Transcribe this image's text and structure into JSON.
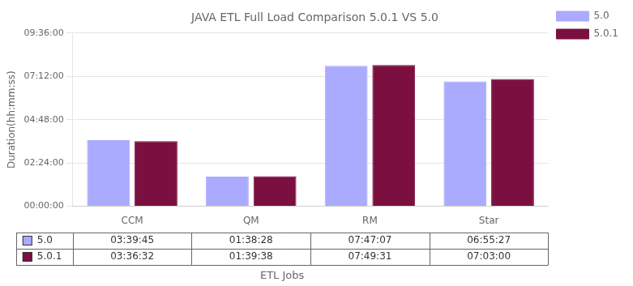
{
  "chart_data": {
    "type": "bar",
    "title": "JAVA ETL Full Load Comparison 5.0.1 VS 5.0",
    "xlabel": "ETL Jobs",
    "ylabel": "Duration(hh:mm:ss)",
    "categories": [
      "CCM",
      "QM",
      "RM",
      "Star"
    ],
    "series": [
      {
        "name": "5.0",
        "color": "#aaaaff",
        "values": [
          13185,
          5908,
          28027,
          24927
        ],
        "value_labels": [
          "03:39:45",
          "01:38:28",
          "07:47:07",
          "06:55:27"
        ]
      },
      {
        "name": "5.0.1",
        "color": "#7b1040",
        "values": [
          12992,
          5978,
          28171,
          25380
        ],
        "value_labels": [
          "03:36:32",
          "01:39:38",
          "07:49:31",
          "07:03:00"
        ]
      }
    ],
    "ylim": [
      0,
      34560
    ],
    "yticks": [
      {
        "value": 0,
        "label": "00:00:00"
      },
      {
        "value": 8640,
        "label": "02:24:00"
      },
      {
        "value": 17280,
        "label": "04:48:00"
      },
      {
        "value": 25920,
        "label": "07:12:00"
      },
      {
        "value": 34560,
        "label": "09:36:00"
      }
    ],
    "grid": true,
    "legend": "right"
  }
}
